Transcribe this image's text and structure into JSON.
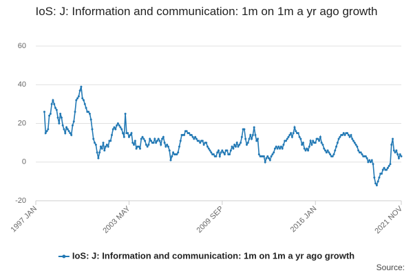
{
  "chart_data": {
    "type": "line",
    "title": "IoS: J: Information and communication: 1m on 1m a yr ago growth",
    "source": "Source:",
    "categories": [
      "1997 JAN",
      null,
      null,
      null,
      null,
      null,
      null,
      null,
      null,
      null,
      null,
      null,
      null,
      null,
      null,
      null,
      null,
      null,
      null,
      null,
      null,
      null,
      null,
      null,
      null,
      null,
      null,
      null,
      null,
      null,
      null,
      null,
      null,
      null,
      null,
      null,
      null,
      null,
      null,
      null,
      null,
      null,
      null,
      null,
      null,
      null,
      null,
      null,
      null,
      null,
      null,
      null,
      null,
      null,
      null,
      null,
      null,
      null,
      null,
      null,
      null,
      null,
      null,
      null,
      null,
      null,
      null,
      null,
      null,
      null,
      null,
      null,
      null,
      null,
      null,
      null,
      "2003 MAY",
      null,
      null,
      null,
      null,
      null,
      null,
      null,
      null,
      null,
      null,
      null,
      null,
      null,
      null,
      null,
      null,
      null,
      null,
      null,
      null,
      null,
      null,
      null,
      null,
      null,
      null,
      null,
      null,
      null,
      null,
      null,
      null,
      null,
      null,
      null,
      null,
      null,
      null,
      null,
      null,
      null,
      null,
      null,
      null,
      null,
      null,
      null,
      null,
      null,
      null,
      null,
      null,
      null,
      null,
      null,
      null,
      null,
      null,
      null,
      null,
      null,
      null,
      null,
      null,
      null,
      null,
      null,
      null,
      null,
      null,
      null,
      null,
      null,
      null,
      null,
      "2009 SEP",
      null,
      null,
      null,
      null,
      null,
      null,
      null,
      null,
      null,
      null,
      null,
      null,
      null,
      null,
      null,
      null,
      null,
      null,
      null,
      null,
      null,
      null,
      null,
      null,
      null,
      null,
      null,
      null,
      null,
      null,
      null,
      null,
      null,
      null,
      null,
      null,
      null,
      null,
      null,
      null,
      null,
      null,
      null,
      null,
      null,
      null,
      null,
      null,
      null,
      null,
      null,
      null,
      null,
      null,
      null,
      null,
      null,
      null,
      null,
      null,
      null,
      null,
      null,
      null,
      null,
      null,
      null,
      null,
      null,
      null,
      null,
      null,
      null,
      null,
      null,
      "2016 JAN",
      null,
      null,
      null,
      null,
      null,
      null,
      null,
      null,
      null,
      null,
      null,
      null,
      null,
      null,
      null,
      null,
      null,
      null,
      null,
      null,
      null,
      null,
      null,
      null,
      null,
      null,
      null,
      null,
      null,
      null,
      null,
      null,
      null,
      null,
      null,
      null,
      null,
      null,
      null,
      null,
      null,
      null,
      null,
      null,
      null,
      null,
      null,
      null,
      null,
      null,
      null,
      null,
      null,
      null,
      null,
      null,
      null,
      null,
      null,
      null,
      null,
      null,
      null,
      null,
      null,
      null,
      null,
      null,
      null,
      "2021 NOV"
    ],
    "series": [
      {
        "name": "IoS: J: Information and communication: 1m on 1m a yr ago growth",
        "color": "#2178b4",
        "values": [
          null,
          null,
          null,
          null,
          null,
          null,
          null,
          26,
          15,
          16,
          17,
          24,
          25,
          30,
          32,
          30,
          28,
          27,
          23,
          20,
          25,
          23,
          19,
          17,
          15,
          18,
          17,
          16,
          15,
          14,
          19,
          21,
          26,
          32,
          33,
          34,
          37,
          39,
          33,
          32,
          30,
          28,
          26,
          26,
          25,
          22,
          17,
          12,
          10,
          9,
          5,
          2,
          5,
          8,
          7,
          10,
          6,
          8,
          9,
          8,
          11,
          11,
          14,
          17,
          18,
          17,
          19,
          20,
          19,
          18,
          17,
          15,
          13,
          25,
          15,
          15,
          13,
          14,
          15,
          10,
          9,
          11,
          7,
          8,
          8,
          7,
          12,
          13,
          12,
          11,
          9,
          8,
          9,
          12,
          11,
          10,
          10,
          12,
          10,
          11,
          12,
          11,
          9,
          12,
          13,
          10,
          8,
          9,
          8,
          6,
          1,
          3,
          5,
          4,
          4,
          4,
          5,
          8,
          11,
          14,
          14,
          14,
          16,
          16,
          15,
          15,
          14,
          14,
          13,
          12,
          13,
          12,
          11,
          11,
          10,
          11,
          11,
          9,
          10,
          10,
          8,
          7,
          6,
          5,
          4,
          4,
          3,
          3,
          5,
          6,
          3,
          5,
          6,
          5,
          4,
          6,
          6,
          4,
          4,
          6,
          8,
          7,
          9,
          8,
          10,
          8,
          9,
          10,
          13,
          17,
          17,
          12,
          9,
          10,
          12,
          14,
          12,
          14,
          18,
          14,
          11,
          12,
          4,
          3,
          3,
          3,
          3,
          0,
          2,
          3,
          2,
          1,
          3,
          4,
          5,
          7,
          8,
          7,
          8,
          7,
          8,
          7,
          9,
          11,
          11,
          12,
          13,
          14,
          15,
          13,
          15,
          18,
          16,
          15,
          15,
          13,
          12,
          9,
          10,
          7,
          6,
          7,
          6,
          8,
          11,
          9,
          11,
          10,
          10,
          12,
          12,
          11,
          13,
          10,
          9,
          7,
          6,
          5,
          6,
          5,
          4,
          3,
          3,
          4,
          6,
          8,
          10,
          12,
          13,
          14,
          14,
          15,
          14,
          15,
          15,
          14,
          13,
          14,
          12,
          11,
          10,
          9,
          8,
          6,
          5,
          5,
          4,
          3,
          3,
          3,
          2,
          0,
          1,
          0,
          1,
          -1,
          -8,
          -11,
          -12,
          -10,
          -8,
          -6,
          -6,
          -4,
          -3,
          -4,
          -4,
          -3,
          -2,
          -1,
          9,
          12,
          6,
          5,
          6,
          4,
          2,
          4,
          3
        ]
      }
    ],
    "ylim": [
      -20,
      60
    ],
    "yticks": [
      -20,
      0,
      20,
      40,
      60
    ],
    "grid": true,
    "legend": "bottom"
  }
}
